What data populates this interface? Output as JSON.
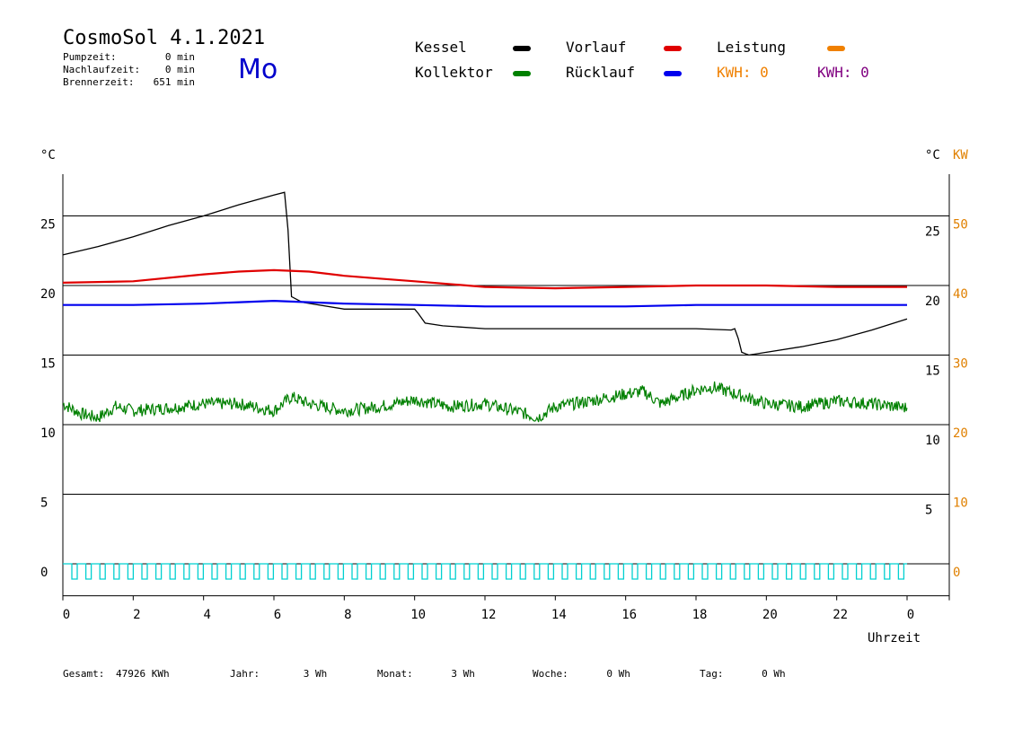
{
  "header": {
    "title": "CosmoSol 4.1.2021",
    "day": "Mo",
    "info": [
      {
        "label": "Pumpzeit:",
        "value": "0 min"
      },
      {
        "label": "Nachlaufzeit:",
        "value": "0 min"
      },
      {
        "label": "Brennerzeit:",
        "value": "651 min"
      }
    ]
  },
  "legend": {
    "kessel": "Kessel",
    "kollektor": "Kollektor",
    "vorlauf": "Vorlauf",
    "ruecklauf": "Rücklauf",
    "leistung": "Leistung",
    "kwh1": "KWH: 0",
    "kwh2": "KWH: 0"
  },
  "colors": {
    "kessel": "#000000",
    "kollektor": "#008000",
    "vorlauf": "#e00000",
    "ruecklauf": "#0000ee",
    "leistung": "#f08000",
    "kwh2": "#800080",
    "pump": "#00d0d0",
    "kw_axis": "#e08000"
  },
  "chart_data": {
    "type": "line",
    "xlabel": "Uhrzeit",
    "left_unit": "°C",
    "right_unit": "°C",
    "right_unit2": "KW",
    "xlim": [
      0,
      24
    ],
    "ylim": [
      -2.3,
      28
    ],
    "x_ticks": [
      "0",
      "2",
      "4",
      "6",
      "8",
      "10",
      "12",
      "14",
      "16",
      "18",
      "20",
      "22",
      "0"
    ],
    "y_ticks_left": [
      "0",
      "5",
      "10",
      "15",
      "20",
      "25"
    ],
    "y_ticks_right": [
      "5",
      "10",
      "15",
      "20",
      "25"
    ],
    "y_ticks_kw": [
      "0",
      "10",
      "20",
      "30",
      "40",
      "50"
    ],
    "grid": "horizontal",
    "series": [
      {
        "name": "Kessel",
        "x": [
          0,
          1,
          2,
          3,
          4,
          5,
          6,
          6.3,
          6.4,
          6.5,
          6.8,
          8,
          9,
          10,
          10.1,
          10.3,
          10.8,
          12,
          13,
          14,
          15,
          16,
          17,
          18,
          19,
          19.1,
          19.2,
          19.3,
          19.5,
          20,
          21,
          22,
          23,
          24
        ],
        "y": [
          22.2,
          22.8,
          23.5,
          24.3,
          25.0,
          25.8,
          26.5,
          26.7,
          24,
          19.2,
          18.8,
          18.3,
          18.3,
          18.3,
          18.0,
          17.3,
          17.1,
          16.9,
          16.9,
          16.9,
          16.9,
          16.9,
          16.9,
          16.9,
          16.8,
          16.9,
          16.2,
          15.2,
          15.0,
          15.2,
          15.6,
          16.1,
          16.8,
          17.6
        ]
      },
      {
        "name": "Vorlauf",
        "x": [
          0,
          2,
          4,
          5,
          6,
          7,
          8,
          9,
          10,
          12,
          14,
          16,
          18,
          20,
          22,
          24
        ],
        "y": [
          20.2,
          20.3,
          20.8,
          21.0,
          21.1,
          21.0,
          20.7,
          20.5,
          20.3,
          19.9,
          19.8,
          19.9,
          20.0,
          20.0,
          19.9,
          19.9
        ]
      },
      {
        "name": "Rücklauf",
        "x": [
          0,
          2,
          4,
          6,
          8,
          10,
          12,
          14,
          16,
          18,
          20,
          22,
          24
        ],
        "y": [
          18.6,
          18.6,
          18.7,
          18.9,
          18.7,
          18.6,
          18.5,
          18.5,
          18.5,
          18.6,
          18.6,
          18.6,
          18.6
        ]
      },
      {
        "name": "Kollektor",
        "x": [
          0,
          0.5,
          1,
          1.5,
          2,
          3,
          4,
          5,
          6,
          6.5,
          7,
          8,
          9,
          10,
          11,
          12,
          13,
          13.5,
          14,
          15,
          16,
          16.5,
          17,
          18,
          18.5,
          19,
          20,
          21,
          22,
          23,
          24
        ],
        "y": [
          11.5,
          10.8,
          10.5,
          11.3,
          11.0,
          11.2,
          11.5,
          11.5,
          11.0,
          12.0,
          11.5,
          11.0,
          11.3,
          11.8,
          11.3,
          11.5,
          10.9,
          10.5,
          11.3,
          11.7,
          12.2,
          12.4,
          11.5,
          12.5,
          12.7,
          12.3,
          11.5,
          11.3,
          11.7,
          11.5,
          11.2
        ]
      }
    ]
  },
  "footer": [
    {
      "label": "Gesamt:",
      "value": "47926 KWh"
    },
    {
      "label": "Jahr:",
      "value": "3 Wh"
    },
    {
      "label": "Monat:",
      "value": "3 Wh"
    },
    {
      "label": "Woche:",
      "value": "0 Wh"
    },
    {
      "label": "Tag:",
      "value": "0 Wh"
    }
  ]
}
